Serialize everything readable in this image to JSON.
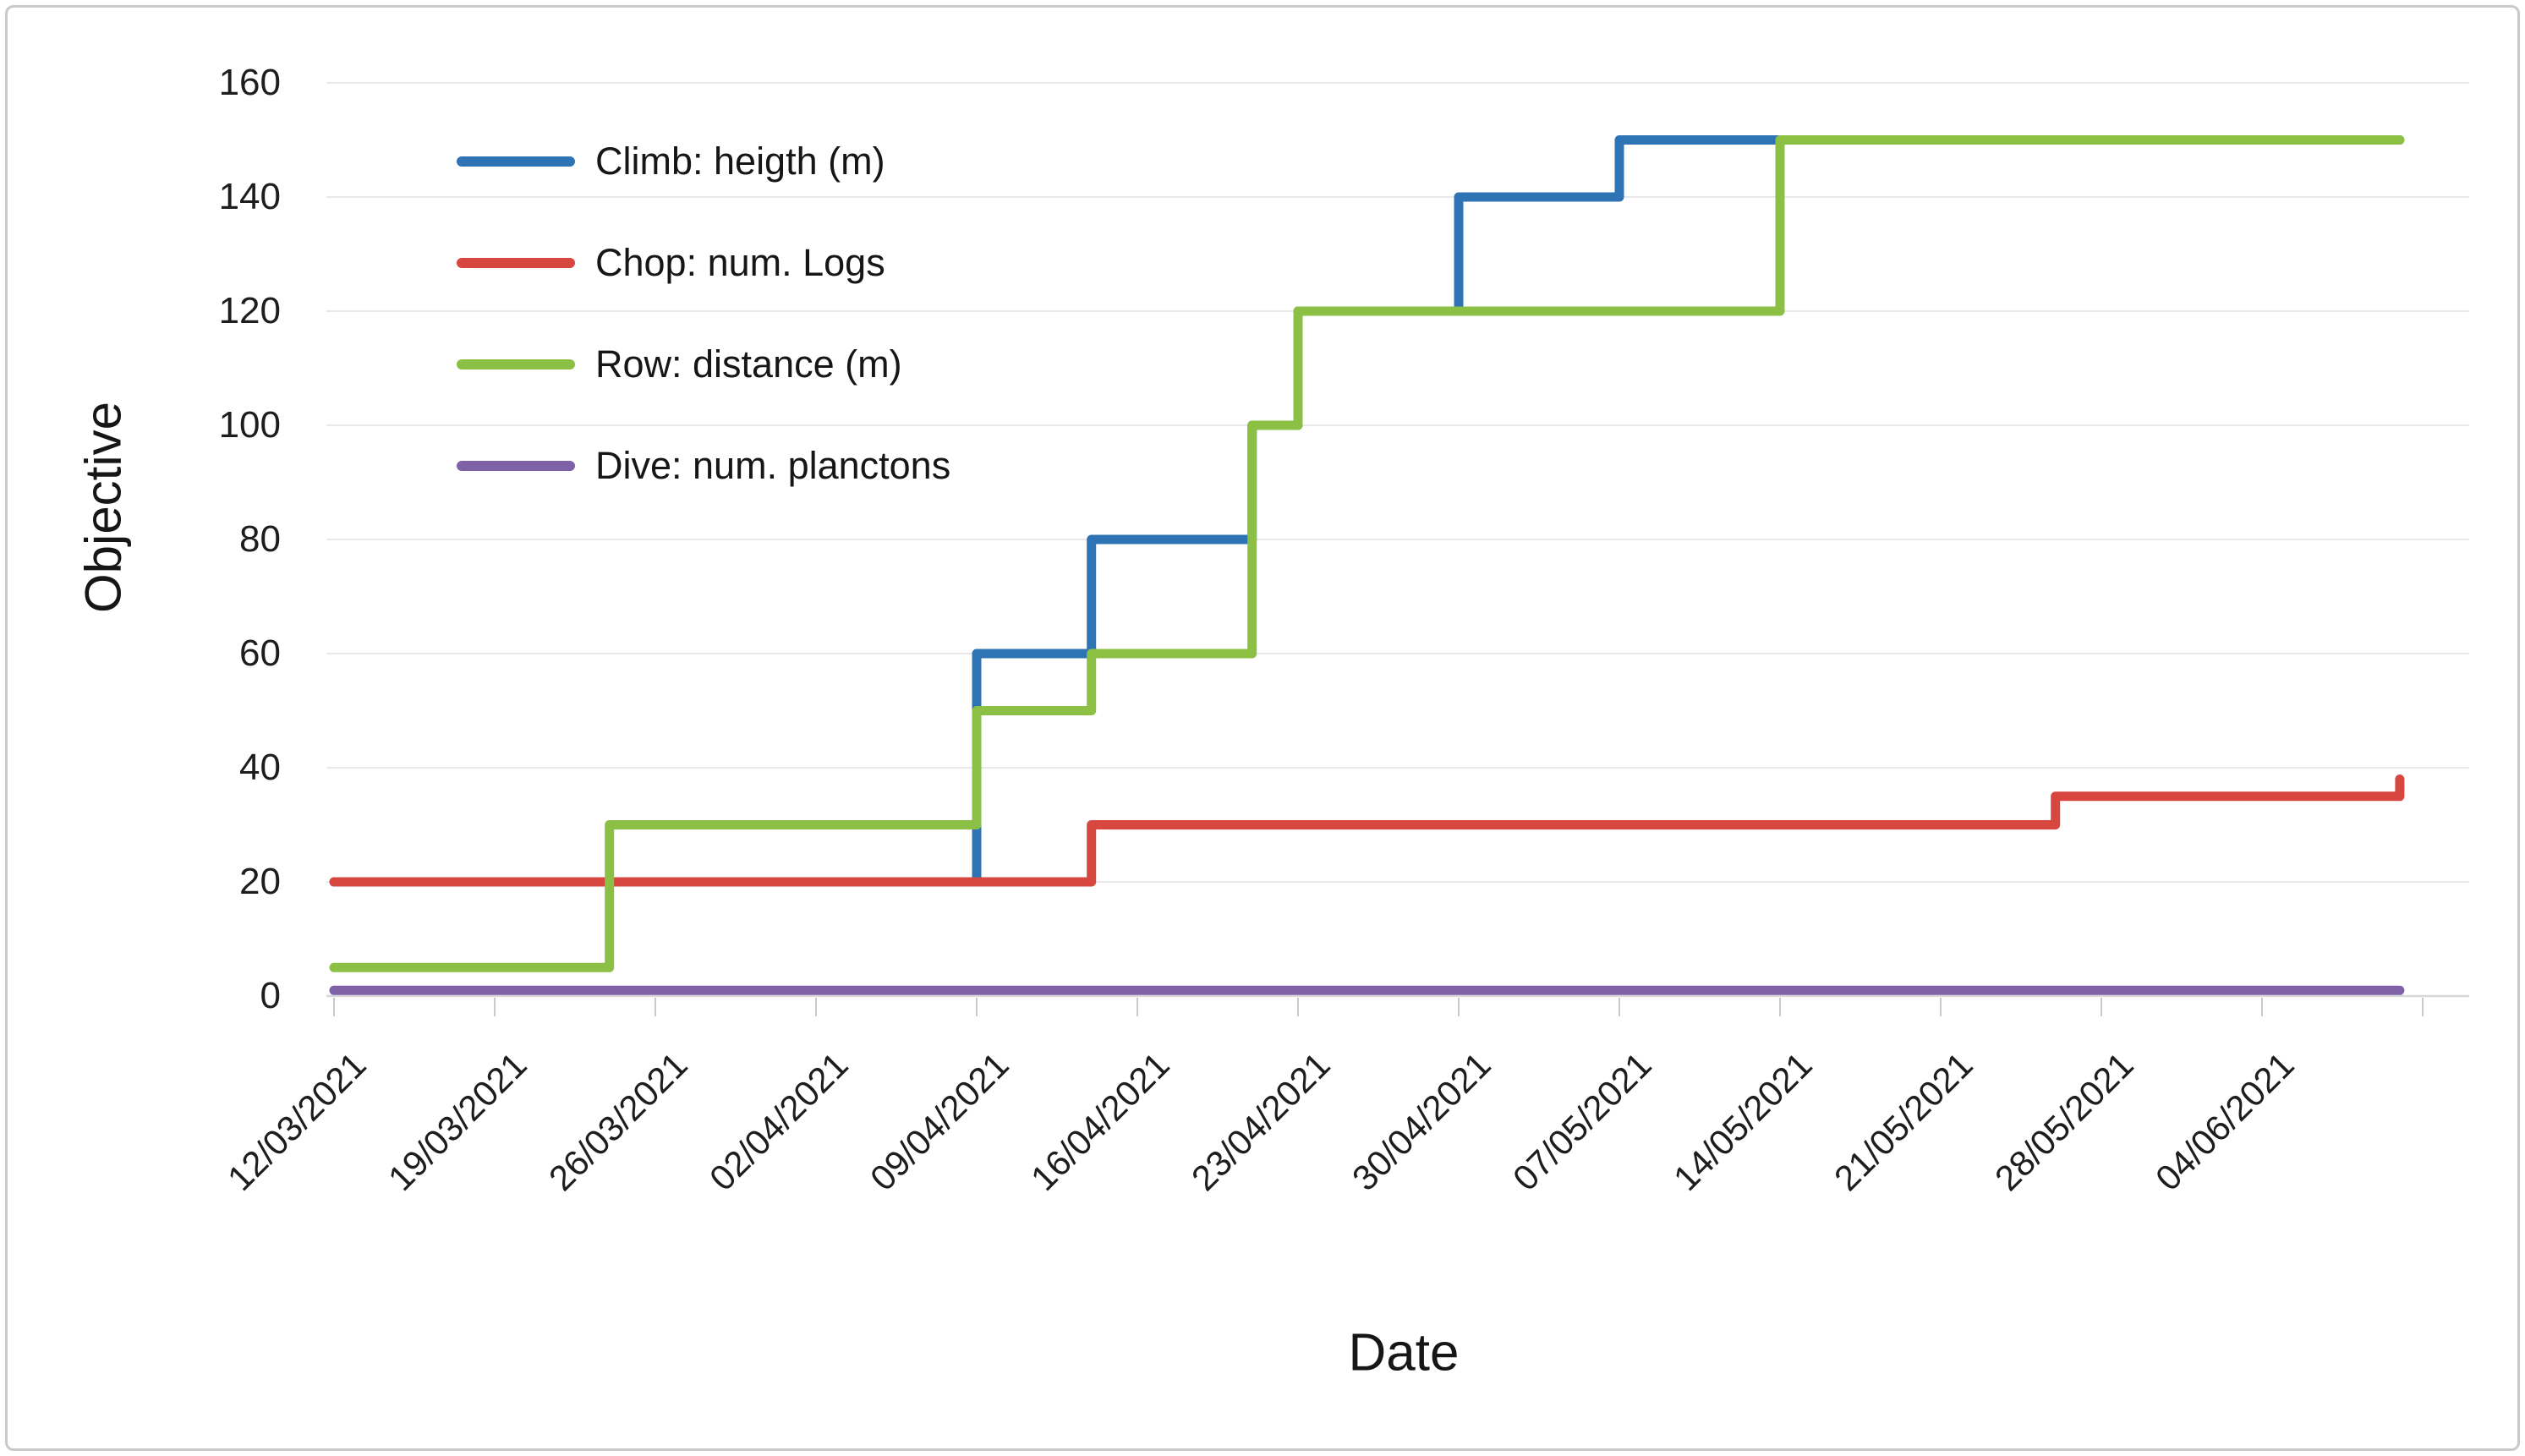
{
  "chart_data": {
    "type": "line",
    "step": "after",
    "title": "",
    "xlabel": "Date",
    "ylabel": "Objective",
    "grid": "horizontal",
    "legend_position": "inside-top-left",
    "ylim": [
      0,
      160
    ],
    "y_tick_labels": [
      "160",
      "140",
      "120",
      "100",
      "80",
      "60",
      "40",
      "20",
      "0"
    ],
    "x_tick_labels": [
      "12/03/2021",
      "19/03/2021",
      "26/03/2021",
      "02/04/2021",
      "09/04/2021",
      "16/04/2021",
      "23/04/2021",
      "30/04/2021",
      "07/05/2021",
      "14/05/2021",
      "21/05/2021",
      "28/05/2021",
      "04/06/2021"
    ],
    "x_end_date": "10/06/2021",
    "series": [
      {
        "name": "Climb: heigth (m)",
        "color": "#2e74b4",
        "points": [
          [
            "12/03/2021",
            20
          ],
          [
            "09/04/2021",
            60
          ],
          [
            "14/04/2021",
            80
          ],
          [
            "21/04/2021",
            100
          ],
          [
            "23/04/2021",
            120
          ],
          [
            "30/04/2021",
            140
          ],
          [
            "07/05/2021",
            150
          ],
          [
            "10/06/2021",
            150
          ]
        ]
      },
      {
        "name": "Chop: num. Logs",
        "color": "#d7473f",
        "points": [
          [
            "12/03/2021",
            20
          ],
          [
            "14/04/2021",
            30
          ],
          [
            "26/05/2021",
            35
          ],
          [
            "10/06/2021",
            38
          ]
        ]
      },
      {
        "name": "Row: distance (m)",
        "color": "#8cc044",
        "points": [
          [
            "12/03/2021",
            5
          ],
          [
            "24/03/2021",
            30
          ],
          [
            "09/04/2021",
            50
          ],
          [
            "14/04/2021",
            60
          ],
          [
            "21/04/2021",
            100
          ],
          [
            "23/04/2021",
            120
          ],
          [
            "14/05/2021",
            150
          ],
          [
            "10/06/2021",
            150
          ]
        ]
      },
      {
        "name": "Dive: num. planctons",
        "color": "#7e61a6",
        "points": [
          [
            "12/03/2021",
            1
          ],
          [
            "10/06/2021",
            1
          ]
        ]
      }
    ],
    "colors": {
      "gridline": "#e9e9e9",
      "axis_line": "#d8d8d8",
      "tick_mark": "#c9c9c9",
      "text": "#1d1d1d"
    }
  }
}
